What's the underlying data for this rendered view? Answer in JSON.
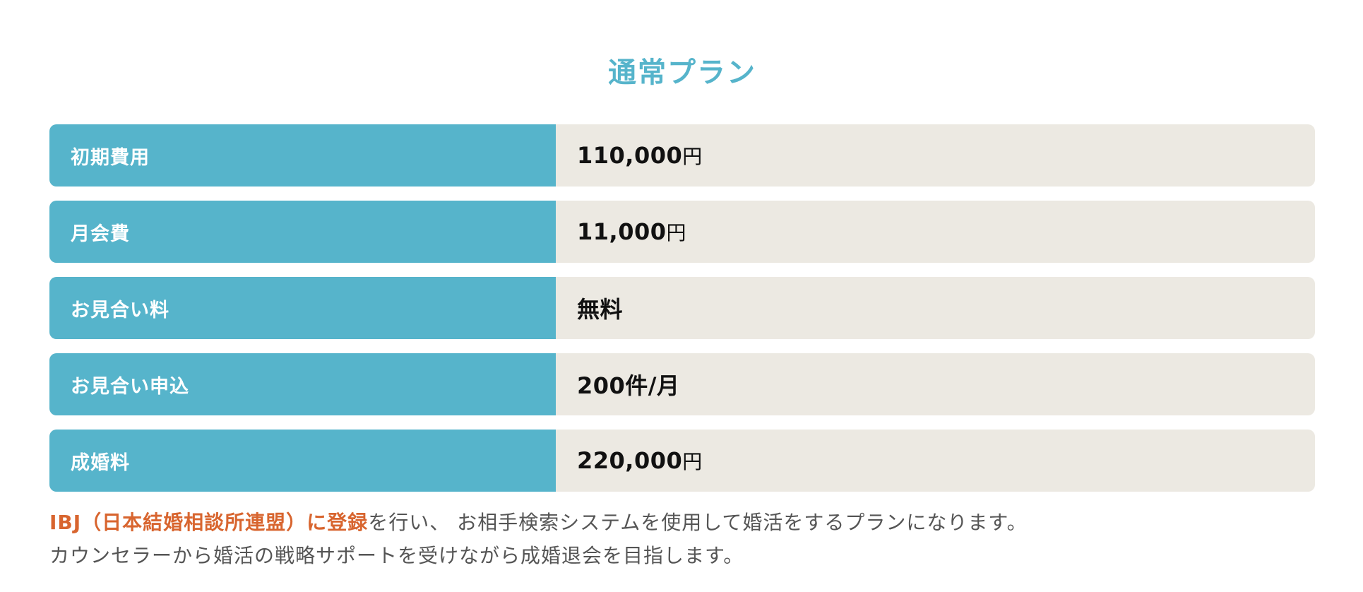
{
  "plan": {
    "title": "通常プラン",
    "colors": {
      "accent": "#56b4cb",
      "label_text": "#ffffff",
      "value_background": "#ece9e2",
      "value_text": "#111111",
      "highlight": "#d8652f",
      "description_text": "#555555"
    },
    "rows": [
      {
        "label": "初期費用",
        "value": "110,000",
        "unit": "円"
      },
      {
        "label": "月会費",
        "value": "11,000",
        "unit": "円"
      },
      {
        "label": "お見合い料",
        "value": "無料",
        "unit": ""
      },
      {
        "label": "お見合い申込",
        "value": "200件/月",
        "unit": ""
      },
      {
        "label": "成婚料",
        "value": "220,000",
        "unit": "円"
      }
    ]
  },
  "description": {
    "highlight": "IBJ（日本結婚相談所連盟）に登録",
    "line1_rest": "を行い、 お相手検索システムを使用して婚活をするプランになります。",
    "line2": "カウンセラーから婚活の戦略サポートを受けながら成婚退会を目指します。"
  }
}
